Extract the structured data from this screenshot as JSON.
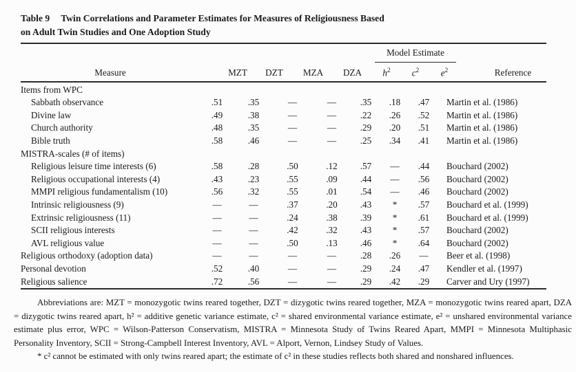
{
  "title": {
    "label": "Table 9",
    "line1": "Twin Correlations and Parameter Estimates for Measures of Religiousness Based",
    "line2": "on Adult Twin Studies and One Adoption Study"
  },
  "table": {
    "group_header": "Model Estimate",
    "columns": {
      "measure": "Measure",
      "mzt": "MZT",
      "dzt": "DZT",
      "mza": "MZA",
      "dza": "DZA",
      "h2_base": "h",
      "h2_sup": "2",
      "c2_base": "c",
      "c2_sup": "2",
      "e2_base": "e",
      "e2_sup": "2",
      "reference": "Reference"
    },
    "rows": [
      {
        "indent": false,
        "measure": "Items from WPC",
        "mzt": "",
        "dzt": "",
        "mza": "",
        "dza": "",
        "h2": "",
        "c2": "",
        "e2": "",
        "ref": ""
      },
      {
        "indent": true,
        "measure": "Sabbath observance",
        "mzt": ".51",
        "dzt": ".35",
        "mza": "—",
        "dza": "—",
        "h2": ".35",
        "c2": ".18",
        "e2": ".47",
        "ref": "Martin et al. (1986)"
      },
      {
        "indent": true,
        "measure": "Divine law",
        "mzt": ".49",
        "dzt": ".38",
        "mza": "—",
        "dza": "—",
        "h2": ".22",
        "c2": ".26",
        "e2": ".52",
        "ref": "Martin et al. (1986)"
      },
      {
        "indent": true,
        "measure": "Church authority",
        "mzt": ".48",
        "dzt": ".35",
        "mza": "—",
        "dza": "—",
        "h2": ".29",
        "c2": ".20",
        "e2": ".51",
        "ref": "Martin et al. (1986)"
      },
      {
        "indent": true,
        "measure": "Bible truth",
        "mzt": ".58",
        "dzt": ".46",
        "mza": "—",
        "dza": "—",
        "h2": ".25",
        "c2": ".34",
        "e2": ".41",
        "ref": "Martin et al. (1986)"
      },
      {
        "indent": false,
        "measure": "MISTRA-scales (# of items)",
        "mzt": "",
        "dzt": "",
        "mza": "",
        "dza": "",
        "h2": "",
        "c2": "",
        "e2": "",
        "ref": ""
      },
      {
        "indent": true,
        "measure": "Religious leisure time interests (6)",
        "mzt": ".58",
        "dzt": ".28",
        "mza": ".50",
        "dza": ".12",
        "h2": ".57",
        "c2": "—",
        "e2": ".44",
        "ref": "Bouchard (2002)"
      },
      {
        "indent": true,
        "measure": "Religious occupational interests (4)",
        "mzt": ".43",
        "dzt": ".23",
        "mza": ".55",
        "dza": ".09",
        "h2": ".44",
        "c2": "—",
        "e2": ".56",
        "ref": "Bouchard (2002)"
      },
      {
        "indent": true,
        "measure": "MMPI religious fundamentalism (10)",
        "mzt": ".56",
        "dzt": ".32",
        "mza": ".55",
        "dza": ".01",
        "h2": ".54",
        "c2": "—",
        "e2": ".46",
        "ref": "Bouchard (2002)"
      },
      {
        "indent": true,
        "measure": "Intrinsic religiousness (9)",
        "mzt": "—",
        "dzt": "—",
        "mza": ".37",
        "dza": ".20",
        "h2": ".43",
        "c2": "*",
        "e2": ".57",
        "ref": "Bouchard et al. (1999)"
      },
      {
        "indent": true,
        "measure": "Extrinsic religiousness (11)",
        "mzt": "—",
        "dzt": "—",
        "mza": ".24",
        "dza": ".38",
        "h2": ".39",
        "c2": "*",
        "e2": ".61",
        "ref": "Bouchard et al. (1999)"
      },
      {
        "indent": true,
        "measure": "SCII religious interests",
        "mzt": "—",
        "dzt": "—",
        "mza": ".42",
        "dza": ".32",
        "h2": ".43",
        "c2": "*",
        "e2": ".57",
        "ref": "Bouchard (2002)"
      },
      {
        "indent": true,
        "measure": "AVL religious value",
        "mzt": "—",
        "dzt": "—",
        "mza": ".50",
        "dza": ".13",
        "h2": ".46",
        "c2": "*",
        "e2": ".64",
        "ref": "Bouchard (2002)"
      },
      {
        "indent": false,
        "measure": "Religious orthodoxy (adoption data)",
        "mzt": "—",
        "dzt": "—",
        "mza": "—",
        "dza": "—",
        "h2": ".28",
        "c2": ".26",
        "e2": "—",
        "ref": "Beer et al. (1998)"
      },
      {
        "indent": false,
        "measure": "Personal devotion",
        "mzt": ".52",
        "dzt": ".40",
        "mza": "—",
        "dza": "—",
        "h2": ".29",
        "c2": ".24",
        "e2": ".47",
        "ref": "Kendler et al. (1997)"
      },
      {
        "indent": false,
        "measure": "Religious salience",
        "mzt": ".72",
        "dzt": ".56",
        "mza": "—",
        "dza": "—",
        "h2": ".29",
        "c2": ".42",
        "e2": ".29",
        "ref": "Carver and Ury (1997)"
      }
    ]
  },
  "footnotes": {
    "abbreviations": "Abbreviations are: MZT = monozygotic twins reared together, DZT = dizygotic twins reared together, MZA = monozygotic twins reared apart, DZA = dizygotic twins reared apart, h² = additive genetic variance estimate, c² = shared environmental variance estimate, e² = unshared environmental variance estimate plus error, WPC = Wilson-Patterson Conservatism, MISTRA = Minnesota Study of Twins Reared Apart, MMPI = Minnesota Multiphasic Personality Inventory, SCII = Strong-Campbell Interest Inventory, AVL = Alport, Vernon, Lindsey Study of Values.",
    "asterisk": "* c² cannot be estimated with only twins reared apart; the estimate of c² in these studies reflects both shared and nonshared influences."
  },
  "colors": {
    "text": "#1a1a1a",
    "rule": "#2a2a2a",
    "background": "#fcfcfc"
  }
}
